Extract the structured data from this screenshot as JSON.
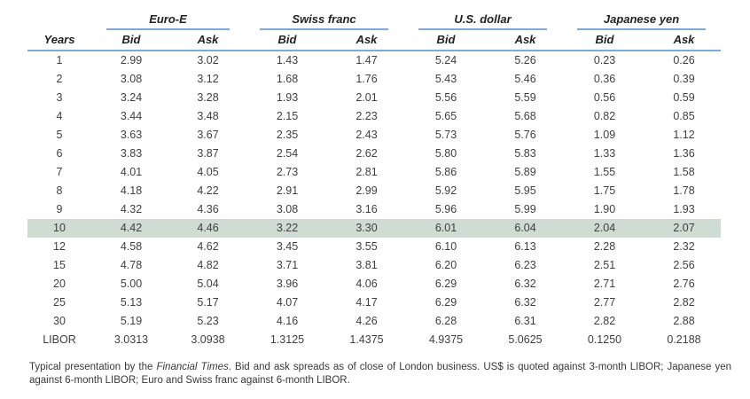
{
  "colors": {
    "rule_blue": "#7ea9d8",
    "highlight_green": "#cedcd2"
  },
  "table": {
    "years_header": "Years",
    "bid_label": "Bid",
    "ask_label": "Ask",
    "groups": [
      {
        "label": "Euro-E"
      },
      {
        "label": "Swiss franc"
      },
      {
        "label": "U.S. dollar"
      },
      {
        "label": "Japanese yen"
      }
    ],
    "highlighted_year": "10",
    "rows": [
      {
        "year": "1",
        "highlight": false,
        "values": [
          "2.99",
          "3.02",
          "1.43",
          "1.47",
          "5.24",
          "5.26",
          "0.23",
          "0.26"
        ]
      },
      {
        "year": "2",
        "highlight": false,
        "values": [
          "3.08",
          "3.12",
          "1.68",
          "1.76",
          "5.43",
          "5.46",
          "0.36",
          "0.39"
        ]
      },
      {
        "year": "3",
        "highlight": false,
        "values": [
          "3.24",
          "3.28",
          "1.93",
          "2.01",
          "5.56",
          "5.59",
          "0.56",
          "0.59"
        ]
      },
      {
        "year": "4",
        "highlight": false,
        "values": [
          "3.44",
          "3.48",
          "2.15",
          "2.23",
          "5.65",
          "5.68",
          "0.82",
          "0.85"
        ]
      },
      {
        "year": "5",
        "highlight": false,
        "values": [
          "3.63",
          "3.67",
          "2.35",
          "2.43",
          "5.73",
          "5.76",
          "1.09",
          "1.12"
        ]
      },
      {
        "year": "6",
        "highlight": false,
        "values": [
          "3.83",
          "3.87",
          "2.54",
          "2.62",
          "5.80",
          "5.83",
          "1.33",
          "1.36"
        ]
      },
      {
        "year": "7",
        "highlight": false,
        "values": [
          "4.01",
          "4.05",
          "2.73",
          "2.81",
          "5.86",
          "5.89",
          "1.55",
          "1.58"
        ]
      },
      {
        "year": "8",
        "highlight": false,
        "values": [
          "4.18",
          "4.22",
          "2.91",
          "2.99",
          "5.92",
          "5.95",
          "1.75",
          "1.78"
        ]
      },
      {
        "year": "9",
        "highlight": false,
        "values": [
          "4.32",
          "4.36",
          "3.08",
          "3.16",
          "5.96",
          "5.99",
          "1.90",
          "1.93"
        ]
      },
      {
        "year": "10",
        "highlight": true,
        "values": [
          "4.42",
          "4.46",
          "3.22",
          "3.30",
          "6.01",
          "6.04",
          "2.04",
          "2.07"
        ]
      },
      {
        "year": "12",
        "highlight": false,
        "values": [
          "4.58",
          "4.62",
          "3.45",
          "3.55",
          "6.10",
          "6.13",
          "2.28",
          "2.32"
        ]
      },
      {
        "year": "15",
        "highlight": false,
        "values": [
          "4.78",
          "4.82",
          "3.71",
          "3.81",
          "6.20",
          "6.23",
          "2.51",
          "2.56"
        ]
      },
      {
        "year": "20",
        "highlight": false,
        "values": [
          "5.00",
          "5.04",
          "3.96",
          "4.06",
          "6.29",
          "6.32",
          "2.71",
          "2.76"
        ]
      },
      {
        "year": "25",
        "highlight": false,
        "values": [
          "5.13",
          "5.17",
          "4.07",
          "4.17",
          "6.29",
          "6.32",
          "2.77",
          "2.82"
        ]
      },
      {
        "year": "30",
        "highlight": false,
        "values": [
          "5.19",
          "5.23",
          "4.16",
          "4.26",
          "6.28",
          "6.31",
          "2.82",
          "2.88"
        ]
      },
      {
        "year": "LIBOR",
        "highlight": false,
        "values": [
          "3.0313",
          "3.0938",
          "1.3125",
          "1.4375",
          "4.9375",
          "5.0625",
          "0.1250",
          "0.2188"
        ]
      }
    ]
  },
  "footnote": {
    "prefix": "Typical presentation by the ",
    "source": "Financial Times",
    "suffix": ". Bid and ask spreads as of close of London business. US$ is quoted against 3-month LIBOR; Japanese yen against 6-month LIBOR; Euro and Swiss franc against 6-month LIBOR."
  }
}
